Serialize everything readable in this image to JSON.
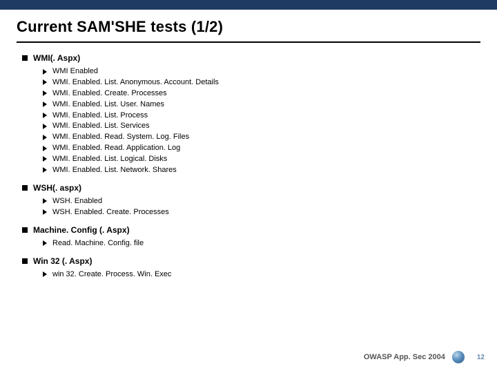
{
  "title": "Current SAM'SHE tests (1/2)",
  "sections": [
    {
      "heading": "WMI(. Aspx)",
      "items": [
        "WMI Enabled",
        "WMI. Enabled. List. Anonymous. Account. Details",
        "WMI. Enabled. Create. Processes",
        "WMI. Enabled. List. User. Names",
        "WMI. Enabled. List. Process",
        "WMI. Enabled. List. Services",
        "WMI. Enabled. Read. System. Log. Files",
        "WMI. Enabled. Read. Application. Log",
        "WMI. Enabled. List. Logical. Disks",
        "WMI. Enabled. List. Network. Shares"
      ]
    },
    {
      "heading": "WSH(. aspx)",
      "items": [
        "WSH. Enabled",
        "WSH. Enabled. Create. Processes"
      ]
    },
    {
      "heading": "Machine. Config (. Aspx)",
      "items": [
        "Read. Machine. Config. file"
      ]
    },
    {
      "heading": "Win 32 (. Aspx)",
      "items": [
        "win 32. Create. Process. Win. Exec"
      ]
    }
  ],
  "footer_text": "OWASP App. Sec 2004",
  "page_number": "12",
  "colors": {
    "topbar": "#1f3b63",
    "pagenum": "#6a8aae"
  }
}
